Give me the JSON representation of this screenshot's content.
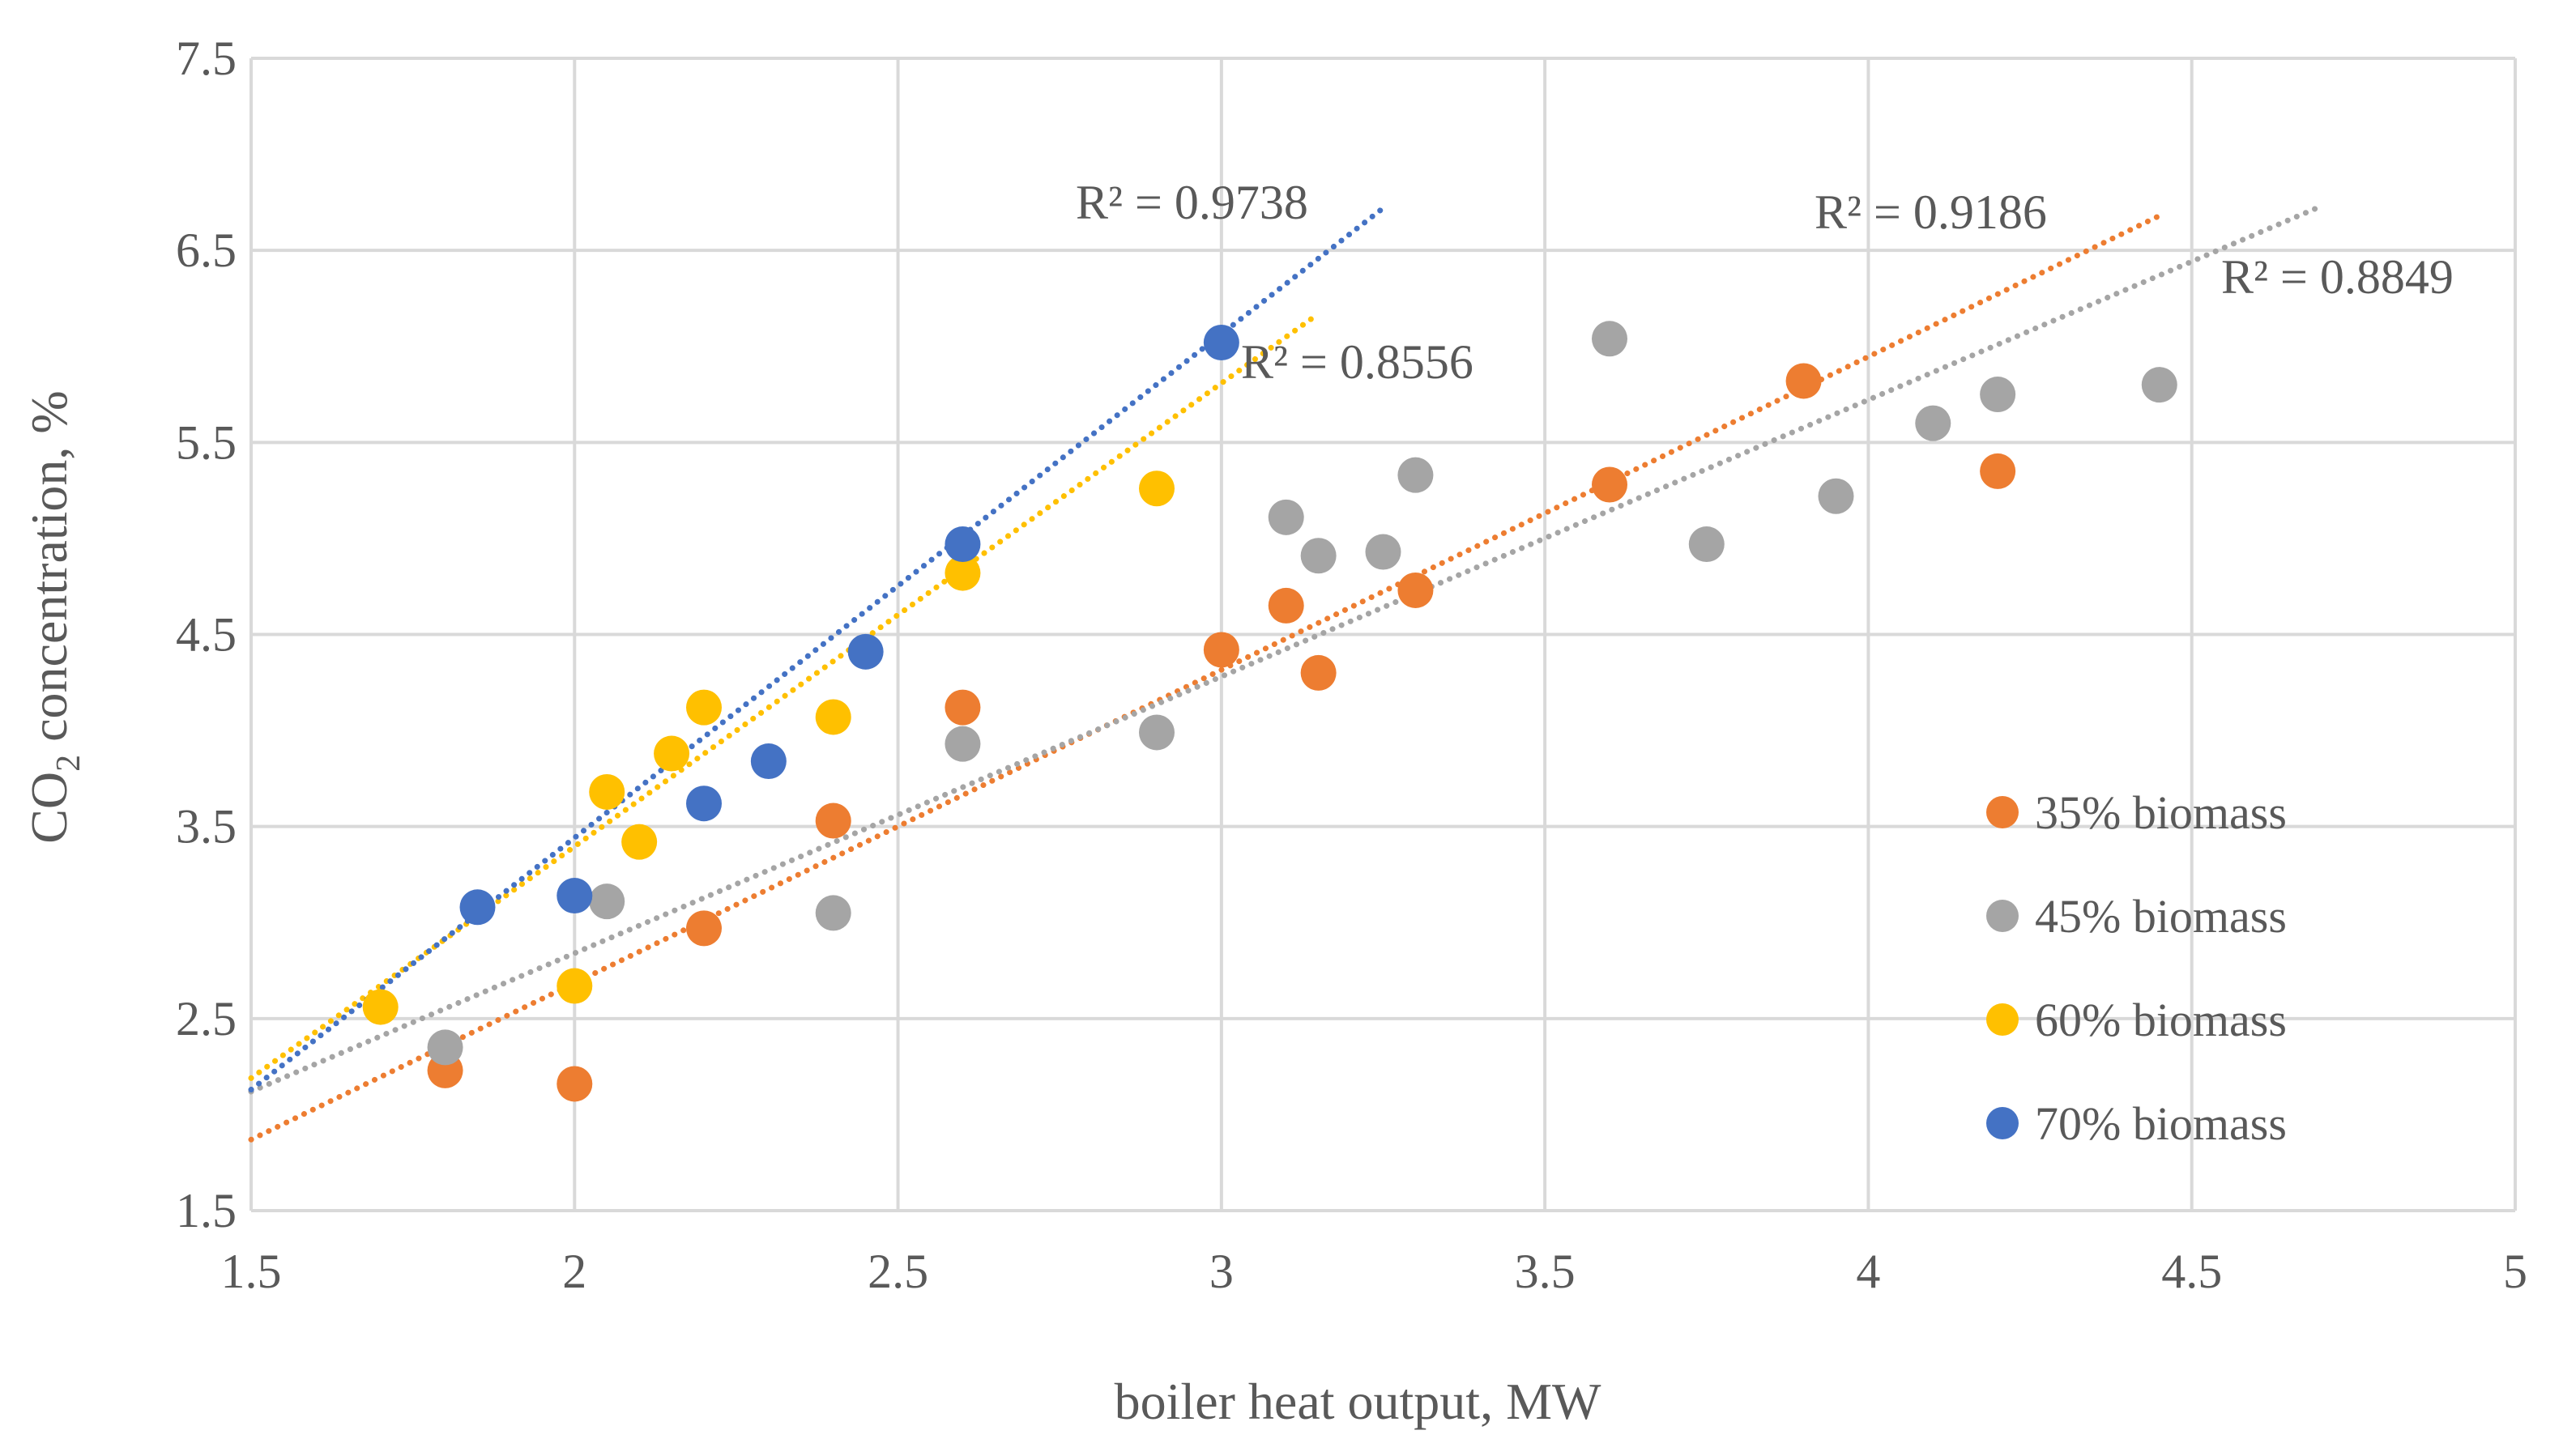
{
  "chart_data": {
    "type": "scatter",
    "xlabel": "boiler heat output, MW",
    "ylabel_main": "CO",
    "ylabel_sub": "2",
    "ylabel_rest": " concentration, %",
    "xlim": [
      1.5,
      5
    ],
    "ylim": [
      1.5,
      7.5
    ],
    "x_ticks": [
      1.5,
      2,
      2.5,
      3,
      3.5,
      4,
      4.5,
      5
    ],
    "x_tick_labels": [
      "1.5",
      "2",
      "2.5",
      "3",
      "3.5",
      "4",
      "4.5",
      "5"
    ],
    "y_ticks": [
      1.5,
      2.5,
      3.5,
      4.5,
      5.5,
      6.5,
      7.5
    ],
    "y_tick_labels": [
      "1.5",
      "2.5",
      "3.5",
      "4.5",
      "5.5",
      "6.5",
      "7.5"
    ],
    "grid": true,
    "legend_position": "right",
    "series": [
      {
        "name": "35% biomass",
        "color": "#ED7D31",
        "points": [
          [
            1.8,
            2.23
          ],
          [
            2.0,
            2.16
          ],
          [
            2.2,
            2.97
          ],
          [
            2.4,
            3.53
          ],
          [
            2.6,
            4.12
          ],
          [
            3.0,
            4.42
          ],
          [
            3.1,
            4.65
          ],
          [
            3.15,
            4.3
          ],
          [
            3.3,
            4.73
          ],
          [
            3.6,
            5.28
          ],
          [
            3.9,
            5.82
          ],
          [
            4.2,
            5.35
          ]
        ],
        "trend": {
          "x_start": 1.5,
          "y_start": 1.87,
          "x_end": 4.45,
          "y_end": 6.68
        },
        "r2_label": "R² = 0.9186"
      },
      {
        "name": "45% biomass",
        "color": "#A5A5A5",
        "points": [
          [
            1.8,
            2.35
          ],
          [
            2.05,
            3.11
          ],
          [
            2.4,
            3.05
          ],
          [
            2.6,
            3.93
          ],
          [
            2.9,
            3.99
          ],
          [
            3.1,
            5.11
          ],
          [
            3.15,
            4.91
          ],
          [
            3.25,
            4.93
          ],
          [
            3.3,
            5.33
          ],
          [
            3.6,
            6.04
          ],
          [
            3.75,
            4.97
          ],
          [
            3.95,
            5.22
          ],
          [
            4.1,
            5.6
          ],
          [
            4.2,
            5.75
          ],
          [
            4.45,
            5.8
          ]
        ],
        "trend": {
          "x_start": 1.5,
          "y_start": 2.12,
          "x_end": 4.7,
          "y_end": 6.73
        },
        "r2_label": "R² = 0.8849"
      },
      {
        "name": "60% biomass",
        "color": "#FFC000",
        "points": [
          [
            1.7,
            2.56
          ],
          [
            2.0,
            2.67
          ],
          [
            2.05,
            3.68
          ],
          [
            2.1,
            3.42
          ],
          [
            2.15,
            3.88
          ],
          [
            2.2,
            4.12
          ],
          [
            2.4,
            4.07
          ],
          [
            2.6,
            4.82
          ],
          [
            2.9,
            5.26
          ]
        ],
        "trend": {
          "x_start": 1.5,
          "y_start": 2.19,
          "x_end": 3.15,
          "y_end": 6.17
        },
        "r2_label": "R² = 0.8556"
      },
      {
        "name": "70% biomass",
        "color": "#4472C4",
        "points": [
          [
            1.85,
            3.08
          ],
          [
            2.0,
            3.14
          ],
          [
            2.2,
            3.62
          ],
          [
            2.3,
            3.84
          ],
          [
            2.45,
            4.41
          ],
          [
            2.6,
            4.97
          ],
          [
            3.0,
            6.02
          ]
        ],
        "trend": {
          "x_start": 1.5,
          "y_start": 2.13,
          "x_end": 3.25,
          "y_end": 6.72
        },
        "r2_label": "R² = 0.9738"
      }
    ]
  }
}
